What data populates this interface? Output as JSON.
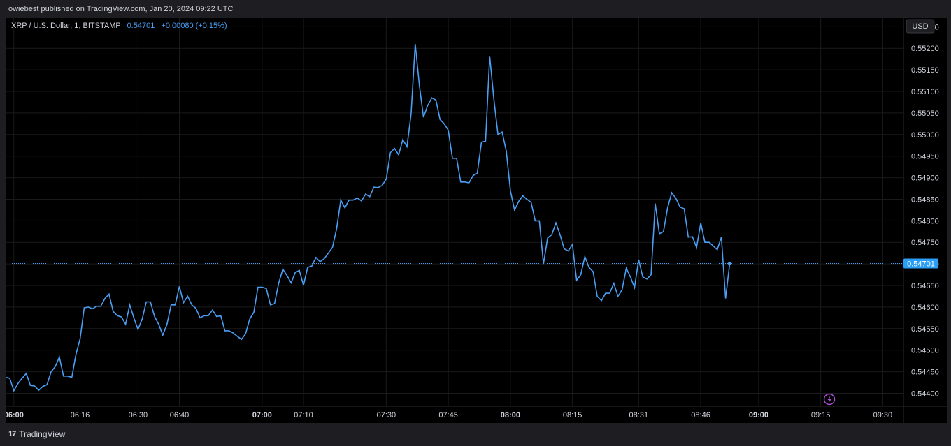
{
  "header": {
    "published": "owiebest published on TradingView.com, Jan 20, 2024 09:22 UTC"
  },
  "legend": {
    "symbol": "XRP / U.S. Dollar, 1, BITSTAMP",
    "price": "0.54701",
    "change": "+0.00080 (+0.15%)"
  },
  "price_axis": {
    "currency": "USD",
    "last_price_label": "0.54701"
  },
  "footer": {
    "brand": "TradingView",
    "logo_text": "17"
  },
  "colors": {
    "line": "#4a9ff5",
    "background": "#000000",
    "grid": "#1a1a1a",
    "label_bg": "#2a9df4",
    "text": "#d1d4dc",
    "flash": "#b14fdc"
  },
  "icons": {
    "flash": "lightning-icon",
    "logo": "tradingview-logo-icon"
  },
  "chart_data": {
    "type": "line",
    "title": "XRP / U.S. Dollar, 1, BITSTAMP",
    "xlabel": "",
    "ylabel": "",
    "ylim": [
      0.5437,
      0.5527
    ],
    "yticks": [
      "0.55250",
      "0.55200",
      "0.55150",
      "0.55100",
      "0.55050",
      "0.55000",
      "0.54950",
      "0.54900",
      "0.54850",
      "0.54800",
      "0.54750",
      "0.54700",
      "0.54650",
      "0.54600",
      "0.54550",
      "0.54500",
      "0.54450",
      "0.54400"
    ],
    "xlim": [
      "05:58",
      "09:35"
    ],
    "xticks": [
      {
        "t": "06:00",
        "bold": true
      },
      {
        "t": "06:16",
        "bold": false
      },
      {
        "t": "06:30",
        "bold": false
      },
      {
        "t": "06:40",
        "bold": false
      },
      {
        "t": "07:00",
        "bold": true
      },
      {
        "t": "07:10",
        "bold": false
      },
      {
        "t": "07:30",
        "bold": false
      },
      {
        "t": "07:45",
        "bold": false
      },
      {
        "t": "08:00",
        "bold": true
      },
      {
        "t": "08:15",
        "bold": false
      },
      {
        "t": "08:31",
        "bold": false
      },
      {
        "t": "08:46",
        "bold": false
      },
      {
        "t": "09:00",
        "bold": true
      },
      {
        "t": "09:15",
        "bold": false
      },
      {
        "t": "09:30",
        "bold": false
      }
    ],
    "last_value": 0.54701,
    "grid": true,
    "series": [
      {
        "values": [
          [
            "05:58",
            0.54437
          ],
          [
            "05:59",
            0.54435
          ],
          [
            "06:00",
            0.54406
          ],
          [
            "06:01",
            0.54423
          ],
          [
            "06:02",
            0.54435
          ],
          [
            "06:03",
            0.54446
          ],
          [
            "06:04",
            0.54418
          ],
          [
            "06:05",
            0.54417
          ],
          [
            "06:06",
            0.54407
          ],
          [
            "06:07",
            0.54416
          ],
          [
            "06:08",
            0.5442
          ],
          [
            "06:09",
            0.5445
          ],
          [
            "06:10",
            0.54462
          ],
          [
            "06:11",
            0.54484
          ],
          [
            "06:12",
            0.5444
          ],
          [
            "06:13",
            0.5444
          ],
          [
            "06:14",
            0.54437
          ],
          [
            "06:15",
            0.5449
          ],
          [
            "06:16",
            0.54526
          ],
          [
            "06:17",
            0.54598
          ],
          [
            "06:18",
            0.546
          ],
          [
            "06:19",
            0.54596
          ],
          [
            "06:20",
            0.54602
          ],
          [
            "06:21",
            0.54602
          ],
          [
            "06:22",
            0.5462
          ],
          [
            "06:23",
            0.5463
          ],
          [
            "06:24",
            0.5459
          ],
          [
            "06:25",
            0.5458
          ],
          [
            "06:26",
            0.54577
          ],
          [
            "06:27",
            0.5456
          ],
          [
            "06:28",
            0.54605
          ],
          [
            "06:29",
            0.54575
          ],
          [
            "06:30",
            0.54548
          ],
          [
            "06:31",
            0.54572
          ],
          [
            "06:32",
            0.54612
          ],
          [
            "06:33",
            0.54612
          ],
          [
            "06:34",
            0.54578
          ],
          [
            "06:35",
            0.5456
          ],
          [
            "06:36",
            0.54535
          ],
          [
            "06:37",
            0.5456
          ],
          [
            "06:38",
            0.54605
          ],
          [
            "06:39",
            0.54605
          ],
          [
            "06:40",
            0.54648
          ],
          [
            "06:41",
            0.5461
          ],
          [
            "06:42",
            0.54625
          ],
          [
            "06:43",
            0.54605
          ],
          [
            "06:44",
            0.54597
          ],
          [
            "06:45",
            0.54575
          ],
          [
            "06:46",
            0.5458
          ],
          [
            "06:47",
            0.5458
          ],
          [
            "06:48",
            0.54593
          ],
          [
            "06:49",
            0.54578
          ],
          [
            "06:50",
            0.5458
          ],
          [
            "06:51",
            0.54545
          ],
          [
            "06:52",
            0.54545
          ],
          [
            "06:53",
            0.5454
          ],
          [
            "06:54",
            0.54532
          ],
          [
            "06:55",
            0.54525
          ],
          [
            "06:56",
            0.54538
          ],
          [
            "06:57",
            0.54572
          ],
          [
            "06:58",
            0.54588
          ],
          [
            "06:59",
            0.54646
          ],
          [
            "07:00",
            0.54646
          ],
          [
            "07:01",
            0.54643
          ],
          [
            "07:02",
            0.54605
          ],
          [
            "07:03",
            0.54608
          ],
          [
            "07:04",
            0.54655
          ],
          [
            "07:05",
            0.54688
          ],
          [
            "07:06",
            0.54673
          ],
          [
            "07:07",
            0.54656
          ],
          [
            "07:08",
            0.5468
          ],
          [
            "07:09",
            0.54685
          ],
          [
            "07:10",
            0.5465
          ],
          [
            "07:11",
            0.54692
          ],
          [
            "07:12",
            0.54695
          ],
          [
            "07:13",
            0.54715
          ],
          [
            "07:14",
            0.54705
          ],
          [
            "07:15",
            0.54712
          ],
          [
            "07:16",
            0.54725
          ],
          [
            "07:17",
            0.54738
          ],
          [
            "07:18",
            0.54782
          ],
          [
            "07:19",
            0.54848
          ],
          [
            "07:20",
            0.5483
          ],
          [
            "07:21",
            0.54848
          ],
          [
            "07:22",
            0.54848
          ],
          [
            "07:23",
            0.54853
          ],
          [
            "07:24",
            0.54846
          ],
          [
            "07:25",
            0.54862
          ],
          [
            "07:26",
            0.54856
          ],
          [
            "07:27",
            0.54878
          ],
          [
            "07:28",
            0.54877
          ],
          [
            "07:29",
            0.54882
          ],
          [
            "07:30",
            0.54897
          ],
          [
            "07:31",
            0.54958
          ],
          [
            "07:32",
            0.54968
          ],
          [
            "07:33",
            0.54953
          ],
          [
            "07:34",
            0.54988
          ],
          [
            "07:35",
            0.54972
          ],
          [
            "07:36",
            0.55048
          ],
          [
            "07:37",
            0.5521
          ],
          [
            "07:38",
            0.55115
          ],
          [
            "07:39",
            0.5504
          ],
          [
            "07:40",
            0.55067
          ],
          [
            "07:41",
            0.55085
          ],
          [
            "07:42",
            0.5508
          ],
          [
            "07:43",
            0.55035
          ],
          [
            "07:44",
            0.55025
          ],
          [
            "07:45",
            0.5501
          ],
          [
            "07:46",
            0.54945
          ],
          [
            "07:47",
            0.54945
          ],
          [
            "07:48",
            0.5489
          ],
          [
            "07:49",
            0.5489
          ],
          [
            "07:50",
            0.54888
          ],
          [
            "07:51",
            0.54905
          ],
          [
            "07:52",
            0.5491
          ],
          [
            "07:53",
            0.54982
          ],
          [
            "07:54",
            0.54985
          ],
          [
            "07:55",
            0.55182
          ],
          [
            "07:56",
            0.55083
          ],
          [
            "07:57",
            0.55
          ],
          [
            "07:58",
            0.55006
          ],
          [
            "07:59",
            0.54962
          ],
          [
            "08:00",
            0.5487
          ],
          [
            "08:01",
            0.54825
          ],
          [
            "08:02",
            0.54845
          ],
          [
            "08:03",
            0.54858
          ],
          [
            "08:04",
            0.5485
          ],
          [
            "08:05",
            0.54843
          ],
          [
            "08:06",
            0.548
          ],
          [
            "08:07",
            0.548
          ],
          [
            "08:08",
            0.547
          ],
          [
            "08:09",
            0.5476
          ],
          [
            "08:10",
            0.54768
          ],
          [
            "08:11",
            0.54795
          ],
          [
            "08:12",
            0.54768
          ],
          [
            "08:13",
            0.54735
          ],
          [
            "08:14",
            0.5473
          ],
          [
            "08:15",
            0.54745
          ],
          [
            "08:16",
            0.54662
          ],
          [
            "08:17",
            0.54675
          ],
          [
            "08:18",
            0.54717
          ],
          [
            "08:19",
            0.54692
          ],
          [
            "08:20",
            0.54682
          ],
          [
            "08:21",
            0.54625
          ],
          [
            "08:22",
            0.54615
          ],
          [
            "08:23",
            0.54632
          ],
          [
            "08:24",
            0.54632
          ],
          [
            "08:25",
            0.54655
          ],
          [
            "08:26",
            0.54625
          ],
          [
            "08:27",
            0.5464
          ],
          [
            "08:28",
            0.5469
          ],
          [
            "08:29",
            0.5467
          ],
          [
            "08:30",
            0.54645
          ],
          [
            "08:31",
            0.5471
          ],
          [
            "08:32",
            0.5467
          ],
          [
            "08:33",
            0.54665
          ],
          [
            "08:34",
            0.54675
          ],
          [
            "08:35",
            0.5484
          ],
          [
            "08:36",
            0.5477
          ],
          [
            "08:37",
            0.54775
          ],
          [
            "08:38",
            0.5483
          ],
          [
            "08:39",
            0.54865
          ],
          [
            "08:40",
            0.54852
          ],
          [
            "08:41",
            0.54832
          ],
          [
            "08:42",
            0.54828
          ],
          [
            "08:43",
            0.54762
          ],
          [
            "08:44",
            0.54763
          ],
          [
            "08:45",
            0.54738
          ],
          [
            "08:46",
            0.54795
          ],
          [
            "08:47",
            0.5475
          ],
          [
            "08:48",
            0.5475
          ],
          [
            "08:49",
            0.54742
          ],
          [
            "08:50",
            0.54733
          ],
          [
            "08:51",
            0.54762
          ],
          [
            "08:52",
            0.5462
          ],
          [
            "08:53",
            0.54701
          ]
        ]
      }
    ]
  }
}
